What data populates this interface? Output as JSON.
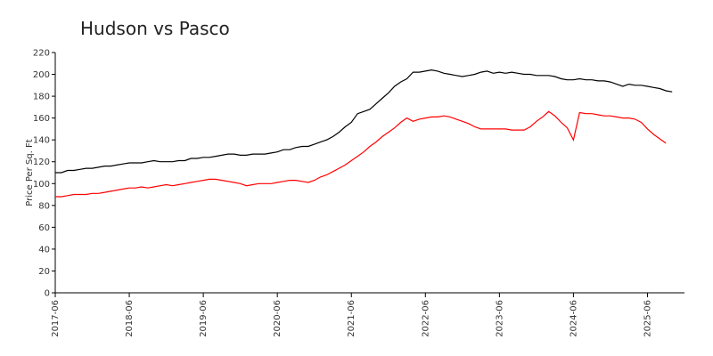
{
  "chart_data": {
    "type": "line",
    "title": "Hudson vs Pasco",
    "xlabel": "",
    "ylabel": "Price Per Sq. Ft",
    "ylim": [
      0,
      220
    ],
    "yticks": [
      0,
      20,
      40,
      60,
      80,
      100,
      120,
      140,
      160,
      180,
      200,
      220
    ],
    "xlim": [
      "2017-06",
      "2025-12"
    ],
    "xticks": [
      "2017-06",
      "2018-06",
      "2019-06",
      "2020-06",
      "2021-06",
      "2022-06",
      "2023-06",
      "2024-06",
      "2025-06"
    ],
    "grid": false,
    "legend": "none",
    "series": [
      {
        "color": "#000000",
        "points": [
          [
            "2017-06",
            110
          ],
          [
            "2017-07",
            110
          ],
          [
            "2017-08",
            112
          ],
          [
            "2017-09",
            112
          ],
          [
            "2017-10",
            113
          ],
          [
            "2017-11",
            114
          ],
          [
            "2017-12",
            114
          ],
          [
            "2018-01",
            115
          ],
          [
            "2018-02",
            116
          ],
          [
            "2018-03",
            116
          ],
          [
            "2018-04",
            117
          ],
          [
            "2018-05",
            118
          ],
          [
            "2018-06",
            119
          ],
          [
            "2018-07",
            119
          ],
          [
            "2018-08",
            119
          ],
          [
            "2018-09",
            120
          ],
          [
            "2018-10",
            121
          ],
          [
            "2018-11",
            120
          ],
          [
            "2018-12",
            120
          ],
          [
            "2019-01",
            120
          ],
          [
            "2019-02",
            121
          ],
          [
            "2019-03",
            121
          ],
          [
            "2019-04",
            123
          ],
          [
            "2019-05",
            123
          ],
          [
            "2019-06",
            124
          ],
          [
            "2019-07",
            124
          ],
          [
            "2019-08",
            125
          ],
          [
            "2019-09",
            126
          ],
          [
            "2019-10",
            127
          ],
          [
            "2019-11",
            127
          ],
          [
            "2019-12",
            126
          ],
          [
            "2020-01",
            126
          ],
          [
            "2020-02",
            127
          ],
          [
            "2020-03",
            127
          ],
          [
            "2020-04",
            127
          ],
          [
            "2020-05",
            128
          ],
          [
            "2020-06",
            129
          ],
          [
            "2020-07",
            131
          ],
          [
            "2020-08",
            131
          ],
          [
            "2020-09",
            133
          ],
          [
            "2020-10",
            134
          ],
          [
            "2020-11",
            134
          ],
          [
            "2020-12",
            136
          ],
          [
            "2021-01",
            138
          ],
          [
            "2021-02",
            140
          ],
          [
            "2021-03",
            143
          ],
          [
            "2021-04",
            147
          ],
          [
            "2021-05",
            152
          ],
          [
            "2021-06",
            156
          ],
          [
            "2021-07",
            164
          ],
          [
            "2021-08",
            166
          ],
          [
            "2021-09",
            168
          ],
          [
            "2021-10",
            173
          ],
          [
            "2021-11",
            178
          ],
          [
            "2021-12",
            183
          ],
          [
            "2022-01",
            189
          ],
          [
            "2022-02",
            193
          ],
          [
            "2022-03",
            196
          ],
          [
            "2022-04",
            202
          ],
          [
            "2022-05",
            202
          ],
          [
            "2022-06",
            203
          ],
          [
            "2022-07",
            204
          ],
          [
            "2022-08",
            203
          ],
          [
            "2022-09",
            201
          ],
          [
            "2022-10",
            200
          ],
          [
            "2022-11",
            199
          ],
          [
            "2022-12",
            198
          ],
          [
            "2023-01",
            199
          ],
          [
            "2023-02",
            200
          ],
          [
            "2023-03",
            202
          ],
          [
            "2023-04",
            203
          ],
          [
            "2023-05",
            201
          ],
          [
            "2023-06",
            202
          ],
          [
            "2023-07",
            201
          ],
          [
            "2023-08",
            202
          ],
          [
            "2023-09",
            201
          ],
          [
            "2023-10",
            200
          ],
          [
            "2023-11",
            200
          ],
          [
            "2023-12",
            199
          ],
          [
            "2024-01",
            199
          ],
          [
            "2024-02",
            199
          ],
          [
            "2024-03",
            198
          ],
          [
            "2024-04",
            196
          ],
          [
            "2024-05",
            195
          ],
          [
            "2024-06",
            195
          ],
          [
            "2024-07",
            196
          ],
          [
            "2024-08",
            195
          ],
          [
            "2024-09",
            195
          ],
          [
            "2024-10",
            194
          ],
          [
            "2024-11",
            194
          ],
          [
            "2024-12",
            193
          ],
          [
            "2025-01",
            191
          ],
          [
            "2025-02",
            189
          ],
          [
            "2025-03",
            191
          ],
          [
            "2025-04",
            190
          ],
          [
            "2025-05",
            190
          ],
          [
            "2025-06",
            189
          ],
          [
            "2025-07",
            188
          ],
          [
            "2025-08",
            187
          ],
          [
            "2025-09",
            185
          ],
          [
            "2025-10",
            184
          ]
        ]
      },
      {
        "color": "#ff0000",
        "points": [
          [
            "2017-06",
            88
          ],
          [
            "2017-07",
            88
          ],
          [
            "2017-08",
            89
          ],
          [
            "2017-09",
            90
          ],
          [
            "2017-10",
            90
          ],
          [
            "2017-11",
            90
          ],
          [
            "2017-12",
            91
          ],
          [
            "2018-01",
            91
          ],
          [
            "2018-02",
            92
          ],
          [
            "2018-03",
            93
          ],
          [
            "2018-04",
            94
          ],
          [
            "2018-05",
            95
          ],
          [
            "2018-06",
            96
          ],
          [
            "2018-07",
            96
          ],
          [
            "2018-08",
            97
          ],
          [
            "2018-09",
            96
          ],
          [
            "2018-10",
            97
          ],
          [
            "2018-11",
            98
          ],
          [
            "2018-12",
            99
          ],
          [
            "2019-01",
            98
          ],
          [
            "2019-02",
            99
          ],
          [
            "2019-03",
            100
          ],
          [
            "2019-04",
            101
          ],
          [
            "2019-05",
            102
          ],
          [
            "2019-06",
            103
          ],
          [
            "2019-07",
            104
          ],
          [
            "2019-08",
            104
          ],
          [
            "2019-09",
            103
          ],
          [
            "2019-10",
            102
          ],
          [
            "2019-11",
            101
          ],
          [
            "2019-12",
            100
          ],
          [
            "2020-01",
            98
          ],
          [
            "2020-02",
            99
          ],
          [
            "2020-03",
            100
          ],
          [
            "2020-04",
            100
          ],
          [
            "2020-05",
            100
          ],
          [
            "2020-06",
            101
          ],
          [
            "2020-07",
            102
          ],
          [
            "2020-08",
            103
          ],
          [
            "2020-09",
            103
          ],
          [
            "2020-10",
            102
          ],
          [
            "2020-11",
            101
          ],
          [
            "2020-12",
            103
          ],
          [
            "2021-01",
            106
          ],
          [
            "2021-02",
            108
          ],
          [
            "2021-03",
            111
          ],
          [
            "2021-04",
            114
          ],
          [
            "2021-05",
            117
          ],
          [
            "2021-06",
            121
          ],
          [
            "2021-07",
            125
          ],
          [
            "2021-08",
            129
          ],
          [
            "2021-09",
            134
          ],
          [
            "2021-10",
            138
          ],
          [
            "2021-11",
            143
          ],
          [
            "2021-12",
            147
          ],
          [
            "2022-01",
            151
          ],
          [
            "2022-02",
            156
          ],
          [
            "2022-03",
            160
          ],
          [
            "2022-04",
            157
          ],
          [
            "2022-05",
            159
          ],
          [
            "2022-06",
            160
          ],
          [
            "2022-07",
            161
          ],
          [
            "2022-08",
            161
          ],
          [
            "2022-09",
            162
          ],
          [
            "2022-10",
            161
          ],
          [
            "2022-11",
            159
          ],
          [
            "2022-12",
            157
          ],
          [
            "2023-01",
            155
          ],
          [
            "2023-02",
            152
          ],
          [
            "2023-03",
            150
          ],
          [
            "2023-04",
            150
          ],
          [
            "2023-05",
            150
          ],
          [
            "2023-06",
            150
          ],
          [
            "2023-07",
            150
          ],
          [
            "2023-08",
            149
          ],
          [
            "2023-09",
            149
          ],
          [
            "2023-10",
            149
          ],
          [
            "2023-11",
            152
          ],
          [
            "2023-12",
            157
          ],
          [
            "2024-01",
            161
          ],
          [
            "2024-02",
            166
          ],
          [
            "2024-03",
            162
          ],
          [
            "2024-04",
            156
          ],
          [
            "2024-05",
            151
          ],
          [
            "2024-06",
            140
          ],
          [
            "2024-07",
            165
          ],
          [
            "2024-08",
            164
          ],
          [
            "2024-09",
            164
          ],
          [
            "2024-10",
            163
          ],
          [
            "2024-11",
            162
          ],
          [
            "2024-12",
            162
          ],
          [
            "2025-01",
            161
          ],
          [
            "2025-02",
            160
          ],
          [
            "2025-03",
            160
          ],
          [
            "2025-04",
            159
          ],
          [
            "2025-05",
            156
          ],
          [
            "2025-06",
            150
          ],
          [
            "2025-07",
            145
          ],
          [
            "2025-08",
            141
          ],
          [
            "2025-09",
            137
          ]
        ]
      }
    ]
  }
}
